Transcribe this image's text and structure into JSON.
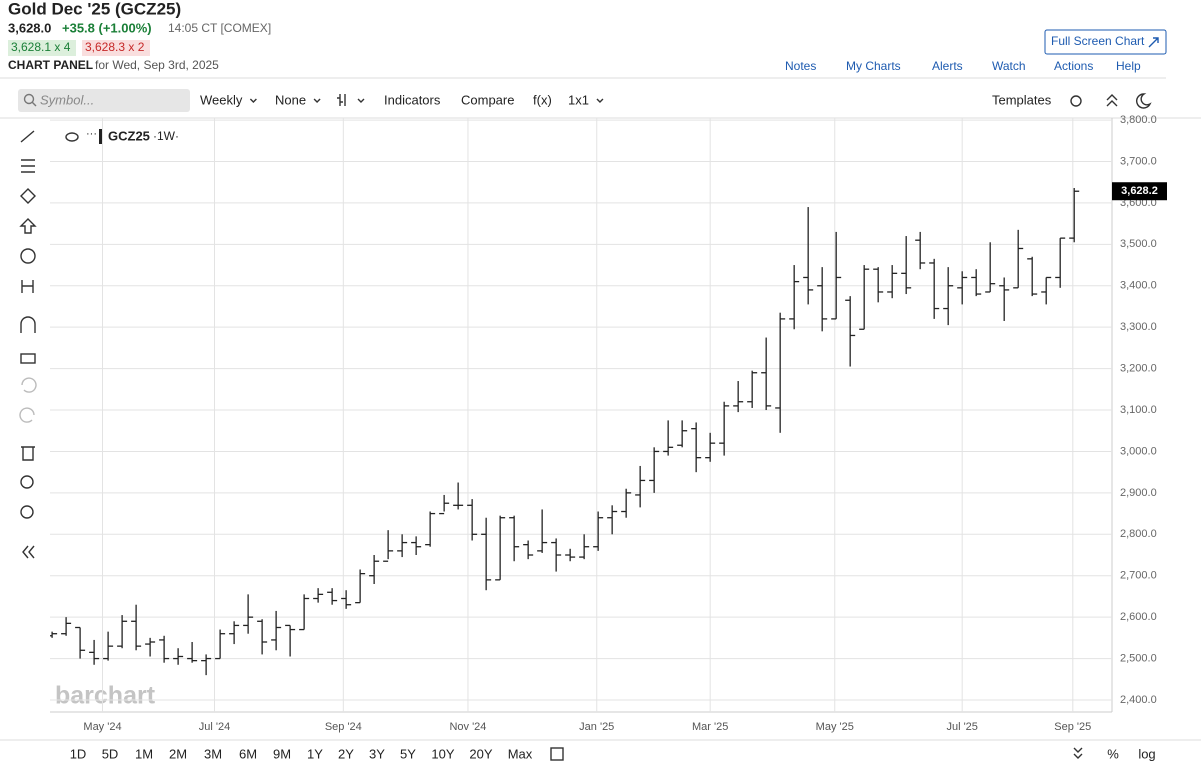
{
  "header": {
    "title": "Gold Dec '25 (GCZ25)",
    "last": "3,628.0",
    "change": "+35.8 (+1.00%)",
    "time": "14:05 CT [COMEX]",
    "bid": "3,628.1 x 4",
    "ask": "3,628.3 x 2",
    "panel": "CHART PANEL",
    "date": "for Wed, Sep 3rd, 2025",
    "full_screen": "Full Screen Chart"
  },
  "toolbar": {
    "links": [
      "Notes",
      "My Charts",
      "Alerts",
      "Watch",
      "Actions",
      "Help"
    ]
  },
  "controls": {
    "symbol_placeholder": "Symbol...",
    "items": [
      "Weekly",
      "None",
      "Indicators",
      "Compare",
      "f(x)",
      "1x1"
    ],
    "templates": "Templates"
  },
  "chart_data": {
    "type": "ohlc",
    "interval": "·1W·",
    "watermark": "barchart",
    "series": [
      {
        "name": "GCZ25",
        "color": "#222222",
        "open": [
          2555,
          2560,
          2575,
          2515,
          2500,
          2530,
          2590,
          2535,
          2545,
          2500,
          2500,
          2495,
          2500,
          2560,
          2580,
          2590,
          2545,
          2580,
          2570,
          2645,
          2660,
          2645,
          2635,
          2700,
          2735,
          2760,
          2780,
          2775,
          2850,
          2870,
          2870,
          2800,
          2690,
          2840,
          2775,
          2760,
          2780,
          2750,
          2745,
          2770,
          2840,
          2855,
          2895,
          2930,
          3000,
          3015,
          3055,
          2985,
          3020,
          3110,
          3120,
          3190,
          3105,
          3320,
          3420,
          3400,
          3320,
          3365,
          3295,
          3440,
          3385,
          3430,
          3510,
          3455,
          3345,
          3395,
          3420,
          3385,
          3400,
          3395,
          3465,
          3385,
          3420,
          3515
        ],
        "high": [
          2565,
          2600,
          2575,
          2545,
          2565,
          2605,
          2630,
          2550,
          2555,
          2525,
          2540,
          2510,
          2570,
          2590,
          2655,
          2595,
          2615,
          2580,
          2655,
          2670,
          2670,
          2665,
          2715,
          2750,
          2810,
          2800,
          2795,
          2855,
          2895,
          2925,
          2885,
          2840,
          2845,
          2845,
          2785,
          2860,
          2790,
          2765,
          2800,
          2855,
          2870,
          2910,
          2965,
          3010,
          3075,
          3075,
          3070,
          3045,
          3120,
          3170,
          3195,
          3275,
          3335,
          3450,
          3590,
          3445,
          3530,
          3375,
          3450,
          3445,
          3450,
          3520,
          3530,
          3465,
          3445,
          3435,
          3440,
          3505,
          3420,
          3535,
          3470,
          3420,
          3515,
          3636
        ],
        "low": [
          2550,
          2555,
          2500,
          2485,
          2495,
          2525,
          2520,
          2505,
          2490,
          2485,
          2490,
          2460,
          2500,
          2535,
          2560,
          2510,
          2520,
          2505,
          2570,
          2635,
          2630,
          2620,
          2635,
          2680,
          2740,
          2745,
          2750,
          2770,
          2855,
          2860,
          2785,
          2665,
          2690,
          2735,
          2740,
          2755,
          2710,
          2735,
          2740,
          2760,
          2800,
          2840,
          2865,
          2900,
          2990,
          3010,
          2950,
          2975,
          2990,
          3095,
          3105,
          3100,
          3045,
          3295,
          3355,
          3290,
          3320,
          3205,
          3295,
          3360,
          3370,
          3380,
          3440,
          3320,
          3305,
          3355,
          3375,
          3385,
          3315,
          3395,
          3375,
          3355,
          3395,
          3505
        ],
        "close": [
          2560,
          2585,
          2520,
          2500,
          2530,
          2590,
          2530,
          2540,
          2500,
          2505,
          2495,
          2500,
          2560,
          2580,
          2600,
          2540,
          2575,
          2570,
          2645,
          2655,
          2640,
          2630,
          2705,
          2735,
          2760,
          2780,
          2770,
          2850,
          2875,
          2870,
          2800,
          2690,
          2840,
          2770,
          2750,
          2780,
          2750,
          2745,
          2770,
          2840,
          2855,
          2900,
          2930,
          3000,
          3010,
          3050,
          2985,
          3020,
          3110,
          3120,
          3190,
          3110,
          3320,
          3410,
          3390,
          3320,
          3420,
          3280,
          3440,
          3385,
          3430,
          3395,
          3455,
          3345,
          3400,
          3420,
          3380,
          3405,
          3390,
          3490,
          3380,
          3420,
          3515,
          3628.2
        ]
      }
    ],
    "last_price": {
      "value": 3628.2,
      "label": "3,628.2"
    },
    "xlim": [
      -0.15,
      75.7
    ],
    "xticks": [
      {
        "value": 3.6,
        "label": "May '24"
      },
      {
        "value": 11.6,
        "label": "Jul '24"
      },
      {
        "value": 20.8,
        "label": "Sep '24"
      },
      {
        "value": 29.7,
        "label": "Nov '24"
      },
      {
        "value": 38.9,
        "label": "Jan '25"
      },
      {
        "value": 47,
        "label": "Mar '25"
      },
      {
        "value": 55.9,
        "label": "May '25"
      },
      {
        "value": 65,
        "label": "Jul '25"
      },
      {
        "value": 72.9,
        "label": "Sep '25"
      }
    ],
    "ylim": [
      2371,
      3805
    ],
    "yticks": [
      {
        "value": 2400,
        "label": "2,400.0"
      },
      {
        "value": 2500,
        "label": "2,500.0"
      },
      {
        "value": 2600,
        "label": "2,600.0"
      },
      {
        "value": 2700,
        "label": "2,700.0"
      },
      {
        "value": 2800,
        "label": "2,800.0"
      },
      {
        "value": 2900,
        "label": "2,900.0"
      },
      {
        "value": 3000,
        "label": "3,000.0"
      },
      {
        "value": 3100,
        "label": "3,100.0"
      },
      {
        "value": 3200,
        "label": "3,200.0"
      },
      {
        "value": 3300,
        "label": "3,300.0"
      },
      {
        "value": 3400,
        "label": "3,400.0"
      },
      {
        "value": 3500,
        "label": "3,500.0"
      },
      {
        "value": 3600,
        "label": "3,600.0"
      },
      {
        "value": 3700,
        "label": "3,700.0"
      },
      {
        "value": 3800,
        "label": "3,800.0"
      }
    ],
    "grid": true
  },
  "footer": {
    "ranges": [
      "1D",
      "5D",
      "1M",
      "2M",
      "3M",
      "6M",
      "9M",
      "1Y",
      "2Y",
      "3Y",
      "5Y",
      "10Y",
      "20Y",
      "Max"
    ],
    "percent": "%",
    "log": "log"
  }
}
